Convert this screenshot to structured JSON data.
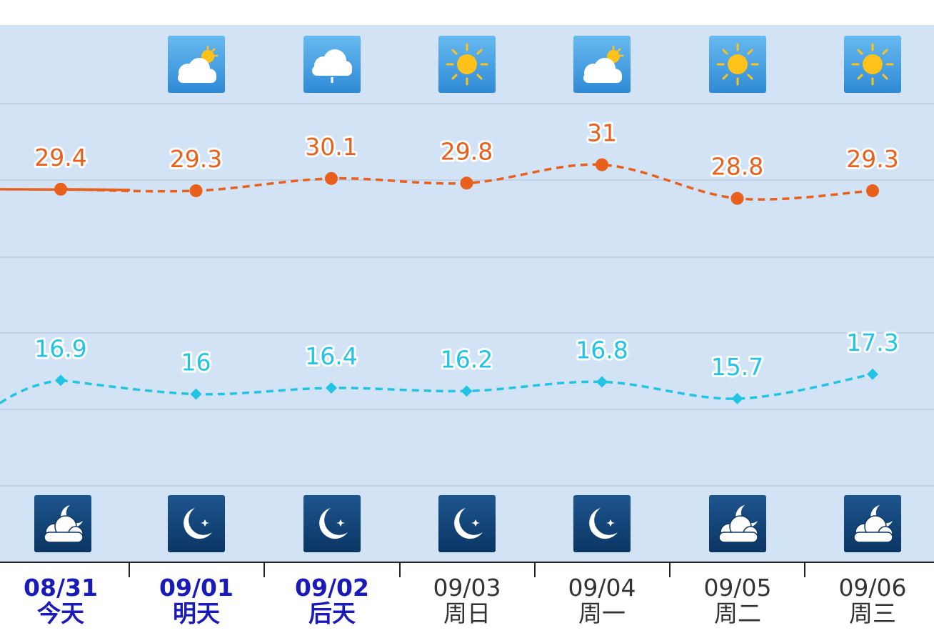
{
  "chart_data": {
    "type": "line",
    "categories": [
      "08/31",
      "09/01",
      "09/02",
      "09/03",
      "09/04",
      "09/05",
      "09/06"
    ],
    "days": [
      "今天",
      "明天",
      "后天",
      "周日",
      "周一",
      "周二",
      "周三"
    ],
    "series": [
      {
        "color": "#e8601c",
        "marker": "circle",
        "values": [
          29.4,
          29.3,
          30.1,
          29.8,
          31,
          28.8,
          29.3
        ]
      },
      {
        "color": "#22c4e6",
        "marker": "diamond",
        "values": [
          16.9,
          16,
          16.4,
          16.2,
          16.8,
          15.7,
          17.3
        ]
      }
    ],
    "ylim": [
      10,
      35
    ]
  }
}
